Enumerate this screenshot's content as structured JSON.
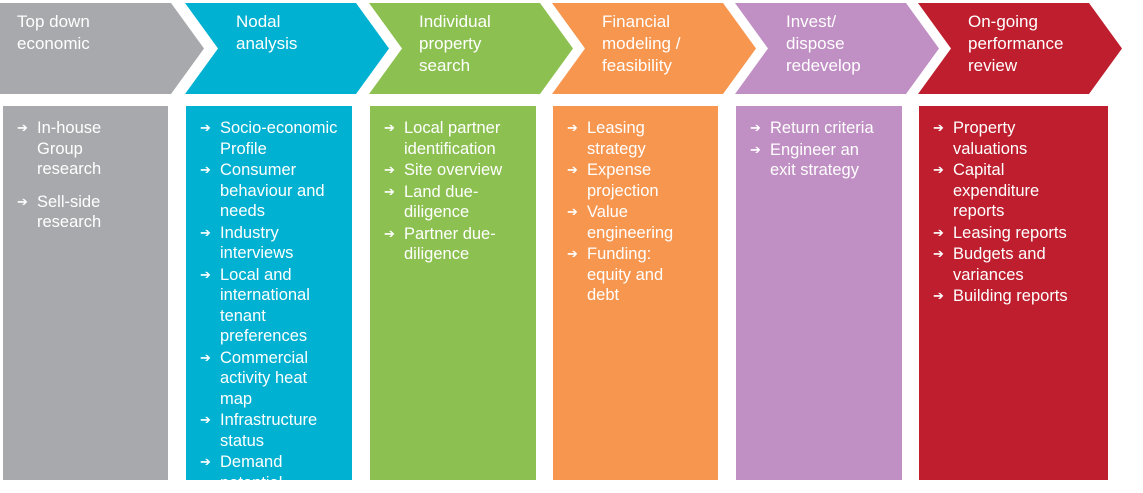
{
  "stages": [
    {
      "title": "Top down\neconomic",
      "color": "#a7a9ac",
      "items": [
        "In-house\nGroup\nresearch",
        "Sell-side\nresearch"
      ]
    },
    {
      "title": "Nodal\nanalysis",
      "color": "#00b1d1",
      "items": [
        "Socio-economic\nProfile",
        "Consumer\nbehaviour and\nneeds",
        "Industry\ninterviews",
        "Local and\ninternational\ntenant preferences",
        "Commercial\nactivity heat\nmap",
        "Infrastructure\nstatus",
        "Demand potential"
      ]
    },
    {
      "title": "Individual\nproperty\nsearch",
      "color": "#8cc152",
      "items": [
        "Local partner\nidentification",
        "Site overview",
        "Land due-\ndiligence",
        "Partner due-\ndiligence"
      ]
    },
    {
      "title": "Financial\nmodeling /\nfeasibility",
      "color": "#f7964f",
      "items": [
        "Leasing\nstrategy",
        "Expense\nprojection",
        "Value\nengineering",
        "Funding:\nequity and\ndebt"
      ]
    },
    {
      "title": "Invest/\ndispose\nredevelop",
      "color": "#c08fc3",
      "items": [
        "Return criteria",
        "Engineer an\nexit strategy"
      ]
    },
    {
      "title": "On-going\nperformance\nreview",
      "color": "#be1e2d",
      "items": [
        "Property\nvaluations",
        "Capital\nexpenditure\nreports",
        "Leasing reports",
        "Budgets and\nvariances",
        "Building reports"
      ]
    }
  ],
  "arrow_glyph": "➔"
}
